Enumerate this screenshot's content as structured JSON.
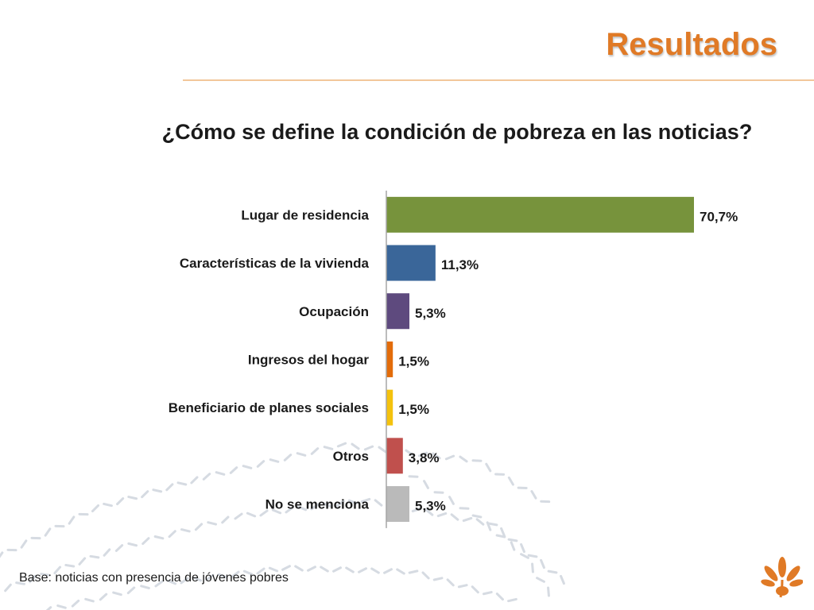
{
  "header": {
    "title": "Resultados"
  },
  "chart_data": {
    "type": "bar",
    "orientation": "horizontal",
    "title": "¿Cómo se define la condición de pobreza en las noticias?",
    "xlabel": "",
    "ylabel": "",
    "categories": [
      "Lugar de residencia",
      "Características de la vivienda",
      "Ocupación",
      "Ingresos del hogar",
      "Beneficiario de planes sociales",
      "Otros",
      "No se menciona"
    ],
    "values": [
      70.7,
      11.3,
      5.3,
      1.5,
      1.5,
      3.8,
      5.3
    ],
    "labels": [
      "70,7%",
      "11,3%",
      "5,3%",
      "1,5%",
      "1,5%",
      "3,8%",
      "5,3%"
    ],
    "colors": [
      "#77933c",
      "#3a6699",
      "#5e4a7e",
      "#e36c0a",
      "#f4c20d",
      "#c0504d",
      "#bababa"
    ],
    "xlim": [
      0,
      100
    ],
    "grid": false,
    "legend": "none"
  },
  "footer": {
    "base_note": "Base: noticias con presencia de jóvenes pobres"
  }
}
